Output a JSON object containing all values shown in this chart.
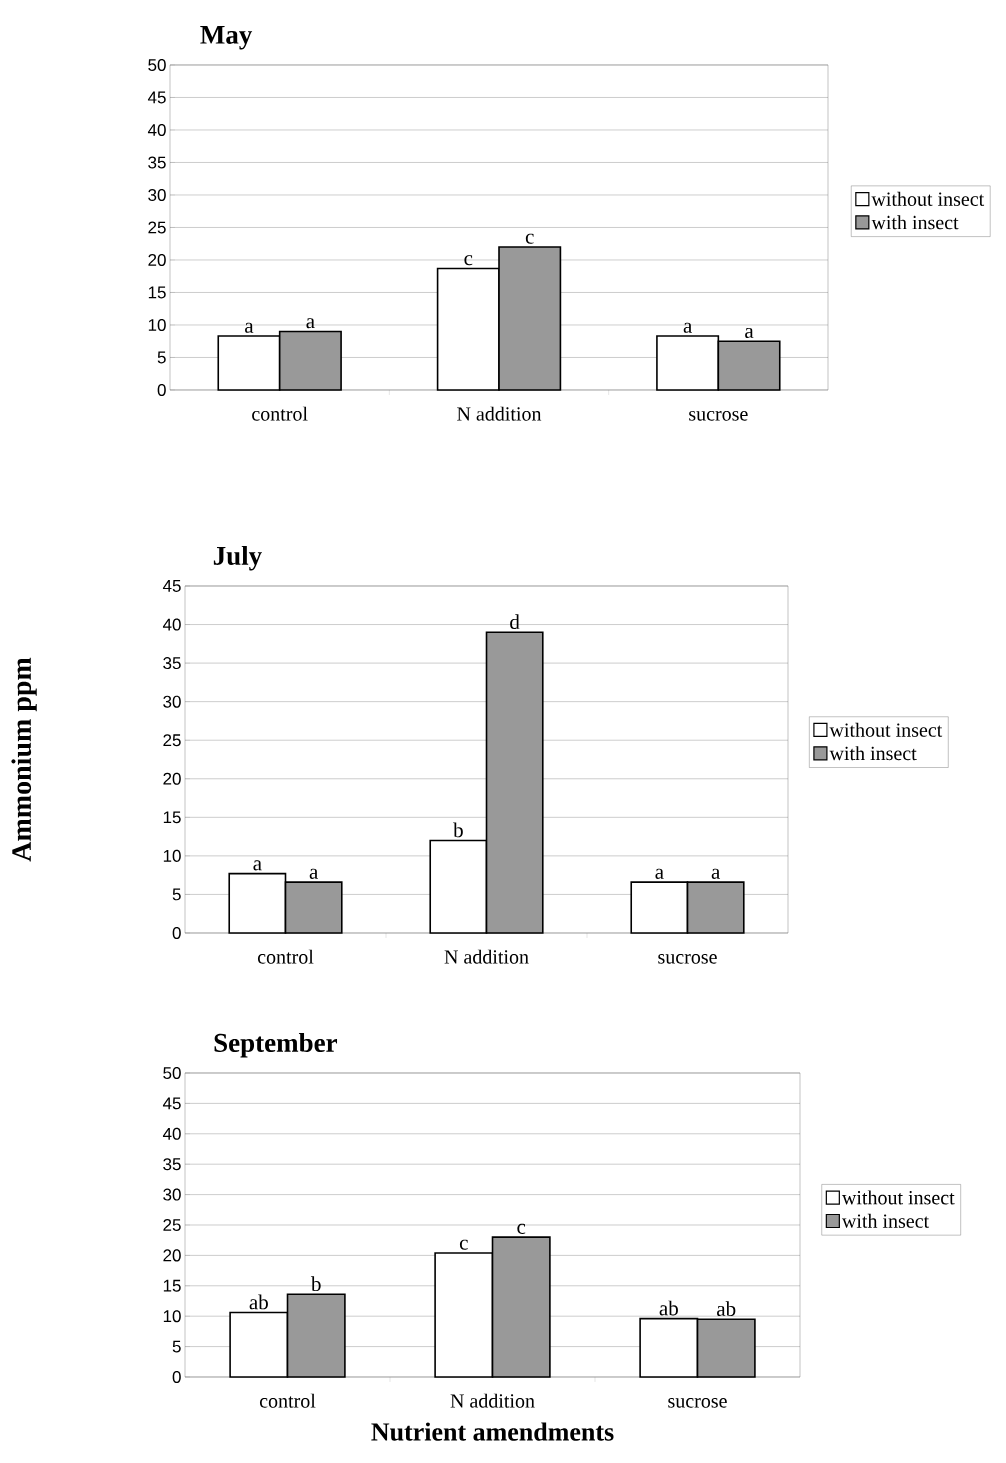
{
  "chart_data": [
    {
      "type": "bar",
      "title": "May",
      "categories": [
        "control",
        "N addition",
        "sucrose"
      ],
      "ylim": [
        0,
        50
      ],
      "yticks": [
        0,
        5,
        10,
        15,
        20,
        25,
        30,
        35,
        40,
        45,
        50
      ],
      "grid": "y",
      "legend": "right",
      "series": [
        {
          "name": "without insect",
          "color": "#ffffff",
          "values": [
            8.3,
            18.7,
            8.3
          ],
          "value_labels": [
            "a",
            "c",
            "a"
          ]
        },
        {
          "name": "with insect",
          "color": "#999999",
          "values": [
            9,
            22,
            7.5
          ],
          "value_labels": [
            "a",
            "c",
            "a"
          ]
        }
      ]
    },
    {
      "type": "bar",
      "title": "July",
      "ylabel": "Ammonium ppm",
      "categories": [
        "control",
        "N addition",
        "sucrose"
      ],
      "ylim": [
        0,
        45
      ],
      "yticks": [
        0,
        5,
        10,
        15,
        20,
        25,
        30,
        35,
        40,
        45
      ],
      "grid": "y",
      "legend": "right",
      "series": [
        {
          "name": "without insect",
          "color": "#ffffff",
          "values": [
            7.7,
            12,
            6.6
          ],
          "value_labels": [
            "a",
            "b",
            "a"
          ]
        },
        {
          "name": "with insect",
          "color": "#999999",
          "values": [
            6.6,
            39,
            6.6
          ],
          "value_labels": [
            "a",
            "d",
            "a"
          ]
        }
      ]
    },
    {
      "type": "bar",
      "title": "September",
      "xlabel": "Nutrient amendments",
      "categories": [
        "control",
        "N addition",
        "sucrose"
      ],
      "ylim": [
        0,
        50
      ],
      "yticks": [
        0,
        5,
        10,
        15,
        20,
        25,
        30,
        35,
        40,
        45,
        50
      ],
      "grid": "y",
      "legend": "right",
      "series": [
        {
          "name": "without insect",
          "color": "#ffffff",
          "values": [
            10.6,
            20.4,
            9.6
          ],
          "value_labels": [
            "ab",
            "c",
            "ab"
          ]
        },
        {
          "name": "with insect",
          "color": "#999999",
          "values": [
            13.6,
            23,
            9.5
          ],
          "value_labels": [
            "b",
            "c",
            "ab"
          ]
        }
      ]
    }
  ]
}
